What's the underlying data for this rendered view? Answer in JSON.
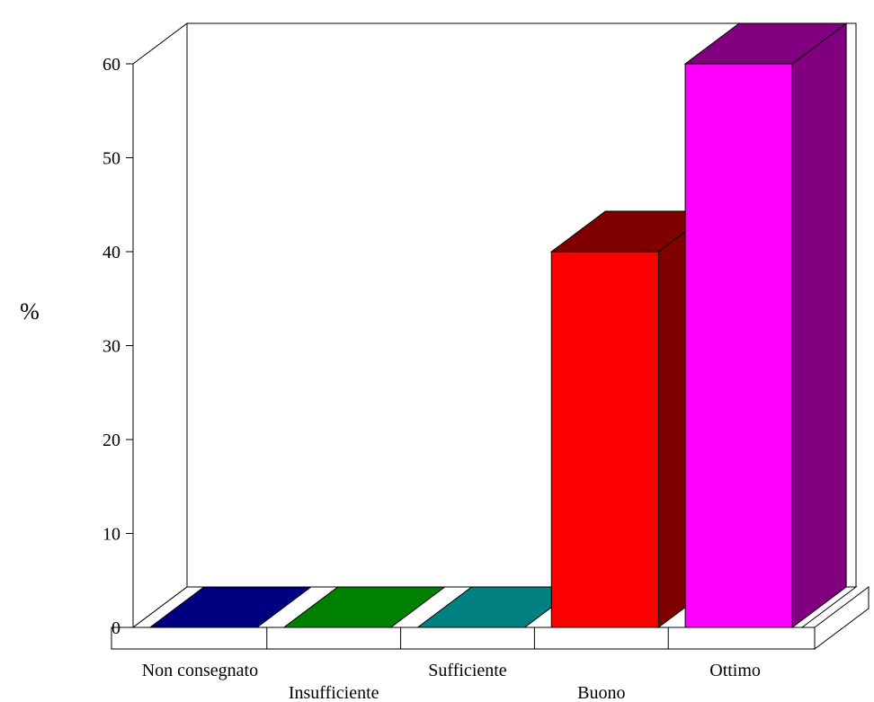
{
  "chart_data": {
    "type": "bar",
    "categories": [
      "Non consegnato",
      "Insufficiente",
      "Sufficiente",
      "Buono",
      "Ottimo"
    ],
    "values": [
      0,
      0,
      0,
      40,
      60
    ],
    "ylabel": "%",
    "ylim": [
      0,
      60
    ],
    "yticks": [
      "0",
      "10",
      "20",
      "30",
      "40",
      "50",
      "60"
    ],
    "colors": {
      "front": [
        "#000080",
        "#008000",
        "#008080",
        "#ff0000",
        "#ff00ff"
      ],
      "side": [
        "#000050",
        "#005000",
        "#005050",
        "#800000",
        "#800080"
      ],
      "top": [
        "#000080",
        "#008000",
        "#008080",
        "#800000",
        "#800080"
      ]
    },
    "style": "3d",
    "grid": false
  }
}
